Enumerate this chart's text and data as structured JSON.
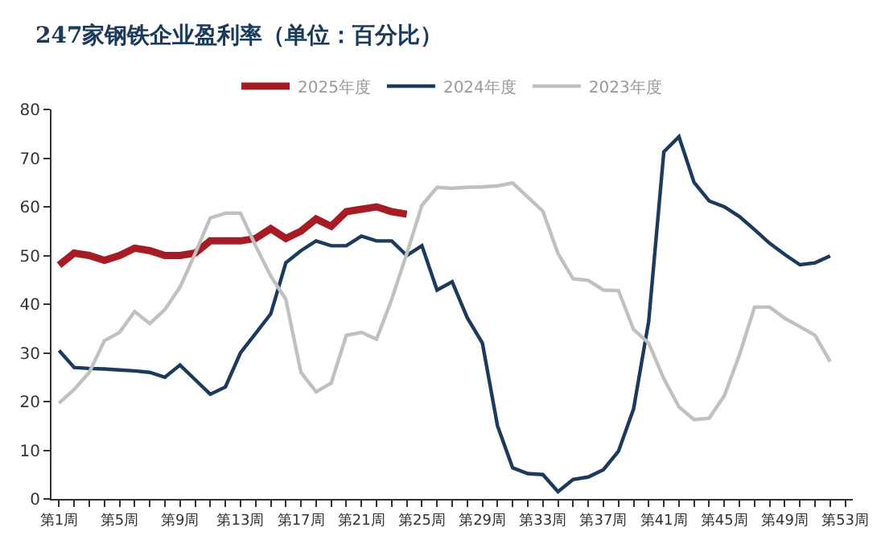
{
  "chart_data": {
    "type": "line",
    "title": "247家钢铁企业盈利率（单位：百分比）",
    "categories": [
      "第1周",
      null,
      null,
      null,
      "第5周",
      null,
      null,
      null,
      "第9周",
      null,
      null,
      null,
      "第13周",
      null,
      null,
      null,
      "第17周",
      null,
      null,
      null,
      "第21周",
      null,
      null,
      null,
      "第25周",
      null,
      null,
      null,
      "第29周",
      null,
      null,
      null,
      "第33周",
      null,
      null,
      null,
      "第37周",
      null,
      null,
      null,
      "第41周",
      null,
      null,
      null,
      "第45周",
      null,
      null,
      null,
      "第49周",
      null,
      null,
      null,
      "第53周"
    ],
    "series": [
      {
        "name": "2025年度",
        "color": "#a61c24",
        "values": [
          48,
          50.5,
          50,
          49,
          50,
          51.5,
          51,
          50,
          50,
          50.5,
          53,
          53,
          53,
          53.5,
          55.5,
          53.5,
          55,
          57.5,
          56,
          59,
          59.5,
          60,
          59,
          58.5,
          null,
          null,
          null,
          null,
          null,
          null,
          null,
          null,
          null,
          null,
          null,
          null,
          null,
          null,
          null,
          null,
          null,
          null,
          null,
          null,
          null,
          null,
          null,
          null,
          null,
          null,
          null,
          null,
          null
        ]
      },
      {
        "name": "2024年度",
        "color": "#1b3a5c",
        "values": [
          30.5,
          27,
          26.8,
          26.7,
          26.5,
          26.3,
          26,
          25,
          27.5,
          24.5,
          21.5,
          23,
          30,
          34,
          38,
          48.5,
          51,
          53,
          52,
          52,
          54,
          53,
          53,
          50,
          52,
          42.9,
          44.6,
          37.2,
          32,
          15,
          6.4,
          5.2,
          5,
          1.5,
          4,
          4.5,
          6,
          9.8,
          18.5,
          36.5,
          71.3,
          74.4,
          65,
          61.2,
          60,
          58,
          55.3,
          52.5,
          50.2,
          48.1,
          48.5,
          49.9,
          null
        ]
      },
      {
        "name": "2023年度",
        "color": "#c0c0c0",
        "values": [
          19.7,
          22.5,
          26,
          32.5,
          34.2,
          38.5,
          36,
          38.9,
          43.5,
          50.4,
          57.7,
          58.7,
          58.7,
          52,
          45.8,
          41,
          26,
          22,
          23.8,
          33.6,
          34.2,
          32.8,
          41,
          50.4,
          60.3,
          64,
          63.8,
          64,
          64.1,
          64.3,
          64.9,
          62,
          59.1,
          50.4,
          45.2,
          44.9,
          42.9,
          42.8,
          34.8,
          32,
          24.7,
          18.9,
          16.3,
          16.6,
          21.2,
          29.6,
          39.4,
          39.4,
          37.1,
          35.4,
          33.6,
          28.2,
          null
        ]
      }
    ],
    "ylim": [
      0,
      80
    ],
    "yticks": [
      0,
      10,
      20,
      30,
      40,
      50,
      60,
      70,
      80
    ],
    "grid": false,
    "legend": "top",
    "marker": "none",
    "line_style": "solid"
  }
}
